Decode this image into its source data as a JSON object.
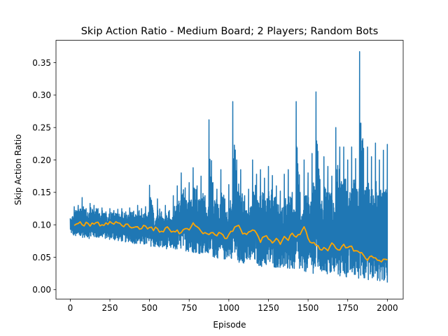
{
  "chart_data": {
    "type": "line",
    "title": "Skip Action Ratio - Medium Board; 2 Players; Random Bots",
    "xlabel": "Episode",
    "ylabel": "Skip Action Ratio",
    "xlim": [
      -90,
      2100
    ],
    "ylim": [
      -0.0145,
      0.3845
    ],
    "xticks": [
      0,
      250,
      500,
      750,
      1000,
      1250,
      1500,
      1750,
      2000
    ],
    "xtick_labels": [
      "0",
      "250",
      "500",
      "750",
      "1000",
      "1250",
      "1500",
      "1750",
      "2000"
    ],
    "yticks": [
      0.0,
      0.05,
      0.1,
      0.15,
      0.2,
      0.25,
      0.3,
      0.35
    ],
    "ytick_labels": [
      "0.00",
      "0.05",
      "0.10",
      "0.15",
      "0.20",
      "0.25",
      "0.30",
      "0.35"
    ],
    "grid": false,
    "legend": "none",
    "series": [
      {
        "color": "#1f77b4",
        "x": [
          0,
          25,
          50,
          75,
          100,
          125,
          150,
          175,
          200,
          225,
          250,
          275,
          300,
          325,
          350,
          375,
          400,
          425,
          450,
          475,
          500,
          525,
          550,
          575,
          600,
          625,
          650,
          675,
          700,
          725,
          750,
          775,
          800,
          825,
          850,
          875,
          900,
          925,
          950,
          975,
          1000,
          1025,
          1050,
          1075,
          1100,
          1125,
          1150,
          1175,
          1200,
          1225,
          1250,
          1275,
          1300,
          1325,
          1350,
          1375,
          1400,
          1425,
          1450,
          1475,
          1500,
          1525,
          1550,
          1575,
          1600,
          1625,
          1650,
          1675,
          1700,
          1725,
          1750,
          1775,
          1800,
          1825,
          1850,
          1875,
          1900,
          1925,
          1950,
          1975,
          2000
        ],
        "low": [
          0.088,
          0.082,
          0.079,
          0.08,
          0.081,
          0.078,
          0.08,
          0.079,
          0.08,
          0.078,
          0.077,
          0.076,
          0.075,
          0.074,
          0.073,
          0.074,
          0.071,
          0.07,
          0.068,
          0.068,
          0.067,
          0.066,
          0.064,
          0.063,
          0.063,
          0.062,
          0.061,
          0.06,
          0.062,
          0.06,
          0.058,
          0.057,
          0.056,
          0.055,
          0.054,
          0.052,
          0.05,
          0.048,
          0.049,
          0.045,
          0.05,
          0.047,
          0.042,
          0.04,
          0.041,
          0.04,
          0.043,
          0.038,
          0.035,
          0.035,
          0.037,
          0.034,
          0.033,
          0.034,
          0.03,
          0.028,
          0.031,
          0.027,
          0.026,
          0.025,
          0.03,
          0.026,
          0.022,
          0.025,
          0.024,
          0.022,
          0.02,
          0.023,
          0.018,
          0.02,
          0.017,
          0.02,
          0.016,
          0.015,
          0.018,
          0.015,
          0.012,
          0.014,
          0.013,
          0.01,
          0.011
        ],
        "high": [
          0.11,
          0.128,
          0.13,
          0.142,
          0.125,
          0.133,
          0.13,
          0.125,
          0.126,
          0.12,
          0.125,
          0.122,
          0.124,
          0.125,
          0.12,
          0.126,
          0.121,
          0.13,
          0.125,
          0.128,
          0.161,
          0.118,
          0.14,
          0.12,
          0.13,
          0.122,
          0.145,
          0.16,
          0.18,
          0.157,
          0.165,
          0.188,
          0.16,
          0.175,
          0.145,
          0.262,
          0.165,
          0.155,
          0.185,
          0.14,
          0.162,
          0.29,
          0.2,
          0.185,
          0.145,
          0.155,
          0.2,
          0.178,
          0.185,
          0.172,
          0.19,
          0.176,
          0.16,
          0.152,
          0.178,
          0.185,
          0.15,
          0.29,
          0.15,
          0.2,
          0.18,
          0.21,
          0.305,
          0.17,
          0.205,
          0.19,
          0.175,
          0.25,
          0.22,
          0.22,
          0.2,
          0.22,
          0.202,
          0.367,
          0.218,
          0.22,
          0.205,
          0.226,
          0.2,
          0.215,
          0.224
        ]
      },
      {
        "color": "#ffa500",
        "x": [
          25,
          50,
          75,
          100,
          125,
          150,
          175,
          200,
          225,
          250,
          275,
          300,
          325,
          350,
          375,
          400,
          425,
          450,
          475,
          500,
          525,
          550,
          575,
          600,
          625,
          650,
          675,
          700,
          725,
          750,
          775,
          800,
          825,
          850,
          875,
          900,
          925,
          950,
          975,
          1000,
          1025,
          1050,
          1075,
          1100,
          1125,
          1150,
          1175,
          1200,
          1225,
          1250,
          1275,
          1300,
          1325,
          1350,
          1375,
          1400,
          1425,
          1450,
          1475,
          1500,
          1525,
          1550,
          1575,
          1600,
          1625,
          1650,
          1675,
          1700,
          1725,
          1750,
          1775,
          1800,
          1825,
          1850,
          1875,
          1900,
          1925,
          1950,
          1975,
          2000
        ],
        "y": [
          0.099,
          0.102,
          0.1,
          0.104,
          0.098,
          0.101,
          0.104,
          0.1,
          0.103,
          0.105,
          0.101,
          0.103,
          0.099,
          0.101,
          0.097,
          0.096,
          0.097,
          0.094,
          0.098,
          0.096,
          0.091,
          0.094,
          0.09,
          0.095,
          0.093,
          0.09,
          0.092,
          0.088,
          0.094,
          0.092,
          0.103,
          0.097,
          0.09,
          0.088,
          0.085,
          0.088,
          0.083,
          0.087,
          0.079,
          0.085,
          0.09,
          0.098,
          0.093,
          0.087,
          0.089,
          0.092,
          0.087,
          0.073,
          0.082,
          0.078,
          0.072,
          0.079,
          0.07,
          0.082,
          0.076,
          0.087,
          0.081,
          0.085,
          0.097,
          0.079,
          0.072,
          0.068,
          0.062,
          0.065,
          0.06,
          0.072,
          0.064,
          0.061,
          0.07,
          0.065,
          0.067,
          0.06,
          0.057,
          0.053,
          0.045,
          0.052,
          0.049,
          0.045,
          0.047,
          0.046
        ]
      }
    ]
  }
}
